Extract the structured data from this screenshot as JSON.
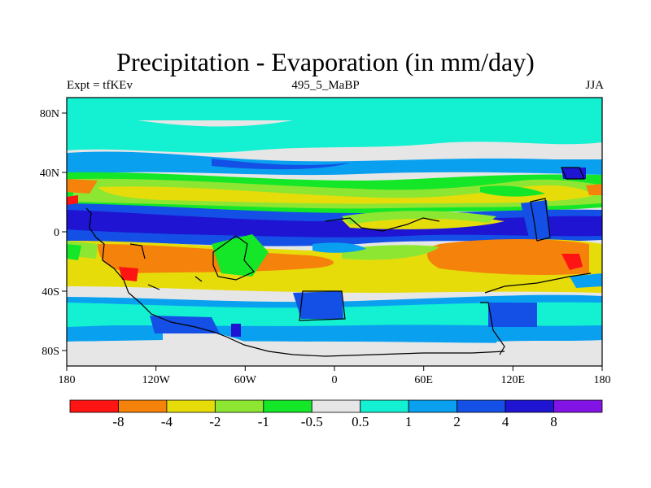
{
  "title": "Precipitation - Evaporation (in mm/day)",
  "experiment_label": "Expt = tfKEv",
  "run_label": "495_5_MaBP",
  "season_label": "JJA",
  "axes": {
    "x_ticks": [
      "180",
      "120W",
      "60W",
      "0",
      "60E",
      "120E",
      "180"
    ],
    "y_ticks": [
      "80N",
      "40N",
      "0",
      "40S",
      "80S"
    ]
  },
  "colorbar": {
    "labels": [
      "-8",
      "-4",
      "-2",
      "-1",
      "-0.5",
      "0.5",
      "1",
      "2",
      "4",
      "8"
    ],
    "colors": [
      "#ff1414",
      "#f5820a",
      "#e6dc0a",
      "#8ce632",
      "#14e628",
      "#e6e6e6",
      "#14f0d2",
      "#0aa0f0",
      "#1450e6",
      "#1e14d2",
      "#8214e6"
    ]
  },
  "palette": {
    "red": "#ff1414",
    "orange": "#f5820a",
    "yellow": "#e6dc0a",
    "lightgreen": "#8ce632",
    "green": "#14e628",
    "grey": "#e6e6e6",
    "cyan": "#14f0d2",
    "lightblue": "#0aa0f0",
    "blue": "#1450e6",
    "darkblue": "#1e14d2",
    "violet": "#8214e6"
  }
}
